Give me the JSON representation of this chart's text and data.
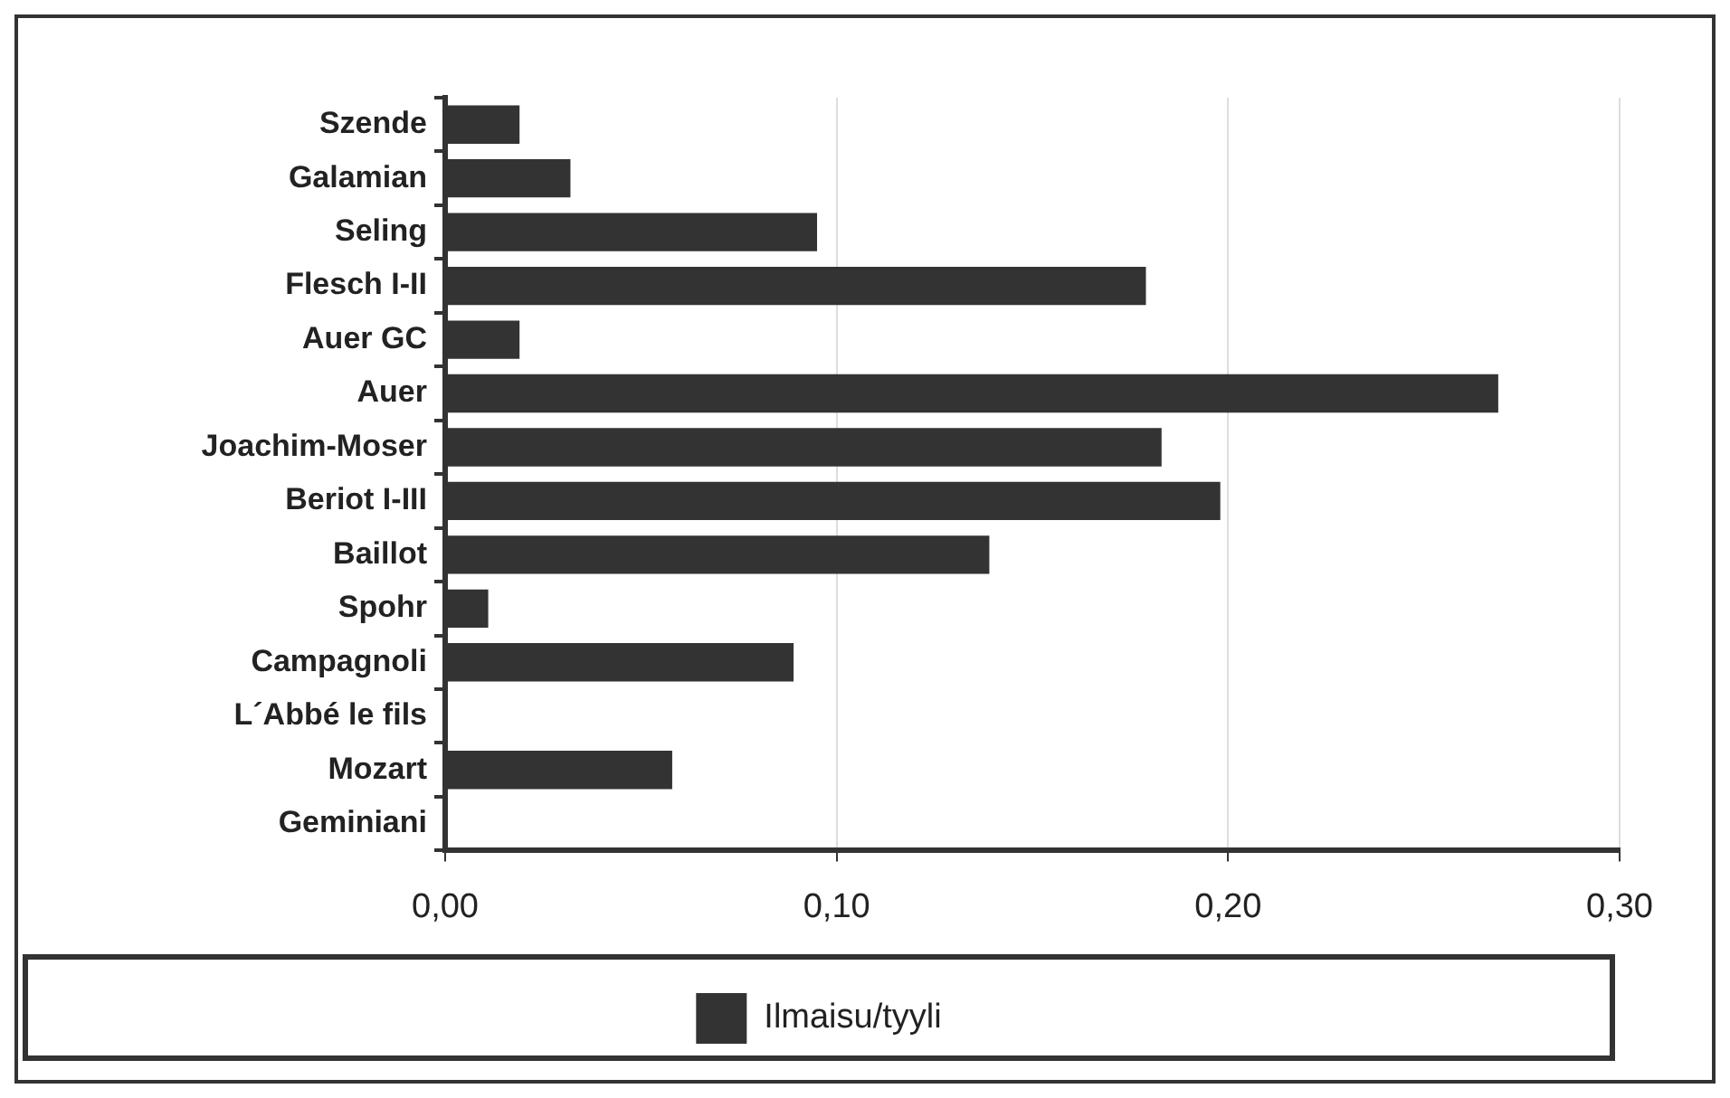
{
  "chart_data": {
    "type": "bar",
    "orientation": "horizontal",
    "categories": [
      "Szende",
      "Galamian",
      "Seling",
      "Flesch I-II",
      "Auer GC",
      "Auer",
      "Joachim-Moser",
      "Beriot I-III",
      "Baillot",
      "Spohr",
      "Campagnoli",
      "L´Abbé le fils",
      "Mozart",
      "Geminiani"
    ],
    "series": [
      {
        "name": "Ilmaisu/tyyli",
        "color": "#333333",
        "values": [
          0.019,
          0.032,
          0.095,
          0.179,
          0.019,
          0.269,
          0.183,
          0.198,
          0.139,
          0.011,
          0.089,
          0,
          0.058,
          0
        ]
      }
    ],
    "xlim": [
      0,
      0.3
    ],
    "xticks": [
      {
        "value": 0,
        "label": "0,00"
      },
      {
        "value": 0.1,
        "label": "0,10"
      },
      {
        "value": 0.2,
        "label": "0,20"
      },
      {
        "value": 0.3,
        "label": "0,30"
      }
    ],
    "grid": "x",
    "legend": "bottom"
  }
}
